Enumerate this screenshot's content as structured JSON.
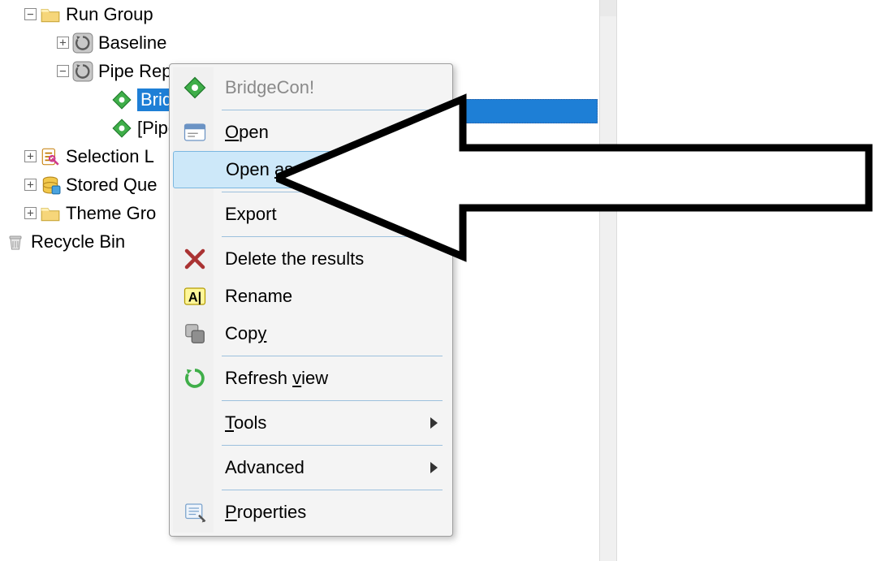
{
  "colors": {
    "selection_bg": "#1e7fd6",
    "selection_fg": "#ffffff",
    "menu_bg": "#f4f4f4",
    "menu_border": "#9e9e9e",
    "menu_hover_bg": "#cde8f9",
    "menu_hover_border": "#7bb7e0",
    "menu_sep": "#9cc0dd",
    "menu_disabled_fg": "#8a8a8a",
    "tree_line": "#b0b0b0",
    "divider_bg": "#f0f0f0",
    "text": "#000000"
  },
  "tree": {
    "items": [
      {
        "indent": 30,
        "expander": "minus",
        "icon": "folder",
        "label": "Run Group"
      },
      {
        "indent": 70,
        "expander": "plus",
        "icon": "cycle",
        "label": "Baseline"
      },
      {
        "indent": 70,
        "expander": "minus",
        "icon": "cycle",
        "label": "Pipe Rep"
      },
      {
        "indent": 118,
        "expander": "none",
        "icon": "diamond",
        "label": "Bridg",
        "selected": true
      },
      {
        "indent": 118,
        "expander": "none",
        "icon": "diamond",
        "label": "[Pipe"
      },
      {
        "indent": 30,
        "expander": "plus",
        "icon": "sel-list",
        "label": "Selection L"
      },
      {
        "indent": 30,
        "expander": "plus",
        "icon": "db",
        "label": "Stored Que"
      },
      {
        "indent": 30,
        "expander": "plus",
        "icon": "folder",
        "label": "Theme Gro"
      }
    ],
    "recycle": {
      "icon": "bin",
      "label": "Recycle Bin"
    }
  },
  "context_menu": {
    "items": [
      {
        "icon": "diamond",
        "label": "BridgeCon!",
        "disabled": true
      },
      {
        "sep": true
      },
      {
        "icon": "window",
        "label": "Open",
        "accel_index": 0
      },
      {
        "icon": "",
        "label": "Open as...",
        "accel_index": 5,
        "hover": true
      },
      {
        "sep": true
      },
      {
        "icon": "",
        "label": "Export"
      },
      {
        "sep": true
      },
      {
        "icon": "x",
        "label": "Delete the results"
      },
      {
        "icon": "rename",
        "label": "Rename"
      },
      {
        "icon": "copy",
        "label": "Copy",
        "accel_index": 3
      },
      {
        "sep": true
      },
      {
        "icon": "refresh",
        "label": "Refresh view",
        "accel_index": 8
      },
      {
        "sep": true
      },
      {
        "icon": "",
        "label": "Tools",
        "accel_index": 0,
        "submenu": true
      },
      {
        "sep": true
      },
      {
        "icon": "",
        "label": "Advanced",
        "submenu": true
      },
      {
        "sep": true
      },
      {
        "icon": "props",
        "label": "Properties",
        "accel_index": 0
      }
    ]
  },
  "annotation": {
    "type": "arrow-left",
    "stroke": "#000000",
    "fill": "#ffffff",
    "stroke_width": 8
  }
}
